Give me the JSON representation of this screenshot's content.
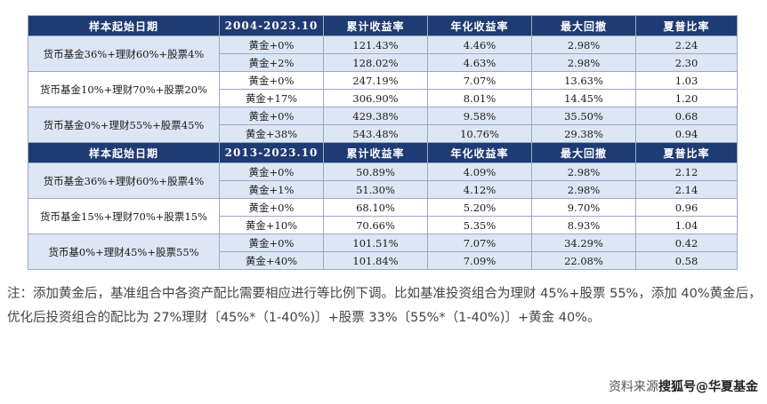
{
  "sections": [
    {
      "headers": [
        "样本起始日期",
        "2004-2023.10",
        "累计收益率",
        "年化收益率",
        "最大回撤",
        "夏普比率"
      ],
      "groups": [
        {
          "label": "货币基金36%+理财60%+股票4%",
          "rows": [
            [
              "黄金+0%",
              "121.43%",
              "4.46%",
              "2.98%",
              "2.24"
            ],
            [
              "黄金+2%",
              "128.02%",
              "4.63%",
              "2.98%",
              "2.30"
            ]
          ]
        },
        {
          "label": "货币基金10%+理财70%+股票20%",
          "rows": [
            [
              "黄金+0%",
              "247.19%",
              "7.07%",
              "13.63%",
              "1.03"
            ],
            [
              "黄金+17%",
              "306.90%",
              "8.01%",
              "14.45%",
              "1.20"
            ]
          ]
        },
        {
          "label": "货币基金0%+理财55%+股票45%",
          "rows": [
            [
              "黄金+0%",
              "429.38%",
              "9.58%",
              "35.50%",
              "0.68"
            ],
            [
              "黄金+38%",
              "543.48%",
              "10.76%",
              "29.38%",
              "0.94"
            ]
          ]
        }
      ]
    },
    {
      "headers": [
        "样本起始日期",
        "2013-2023.10",
        "累计收益率",
        "年化收益率",
        "最大回撤",
        "夏普比率"
      ],
      "groups": [
        {
          "label": "货币基金36%+理财60%+股票4%",
          "rows": [
            [
              "黄金+0%",
              "50.89%",
              "4.09%",
              "2.98%",
              "2.12"
            ],
            [
              "黄金+1%",
              "51.30%",
              "4.12%",
              "2.98%",
              "2.14"
            ]
          ]
        },
        {
          "label": "货币基金15%+理财70%+股票15%",
          "rows": [
            [
              "黄金+0%",
              "68.10%",
              "5.20%",
              "9.70%",
              "0.96"
            ],
            [
              "黄金+10%",
              "70.66%",
              "5.35%",
              "8.93%",
              "1.04"
            ]
          ]
        },
        {
          "label": "货币基0%+理财45%+股票55%",
          "rows": [
            [
              "黄金+0%",
              "101.51%",
              "7.07%",
              "34.29%",
              "0.42"
            ],
            [
              "黄金+40%",
              "101.84%",
              "7.09%",
              "22.08%",
              "0.58"
            ]
          ]
        }
      ]
    }
  ],
  "note": "注：添加黄金后，基准组合中各资产配比需要相应进行等比例下调。比如基准投资组合为理财 45%+股票 55%，添加 40%黄金后，优化后投资组合的配比为 27%理财〔45%*（1-40%)〕+股票 33%〔55%*（1-40%)〕+黄金 40%。",
  "source": {
    "label": "资料来源",
    "watermark": "搜狐号@华夏基金"
  }
}
